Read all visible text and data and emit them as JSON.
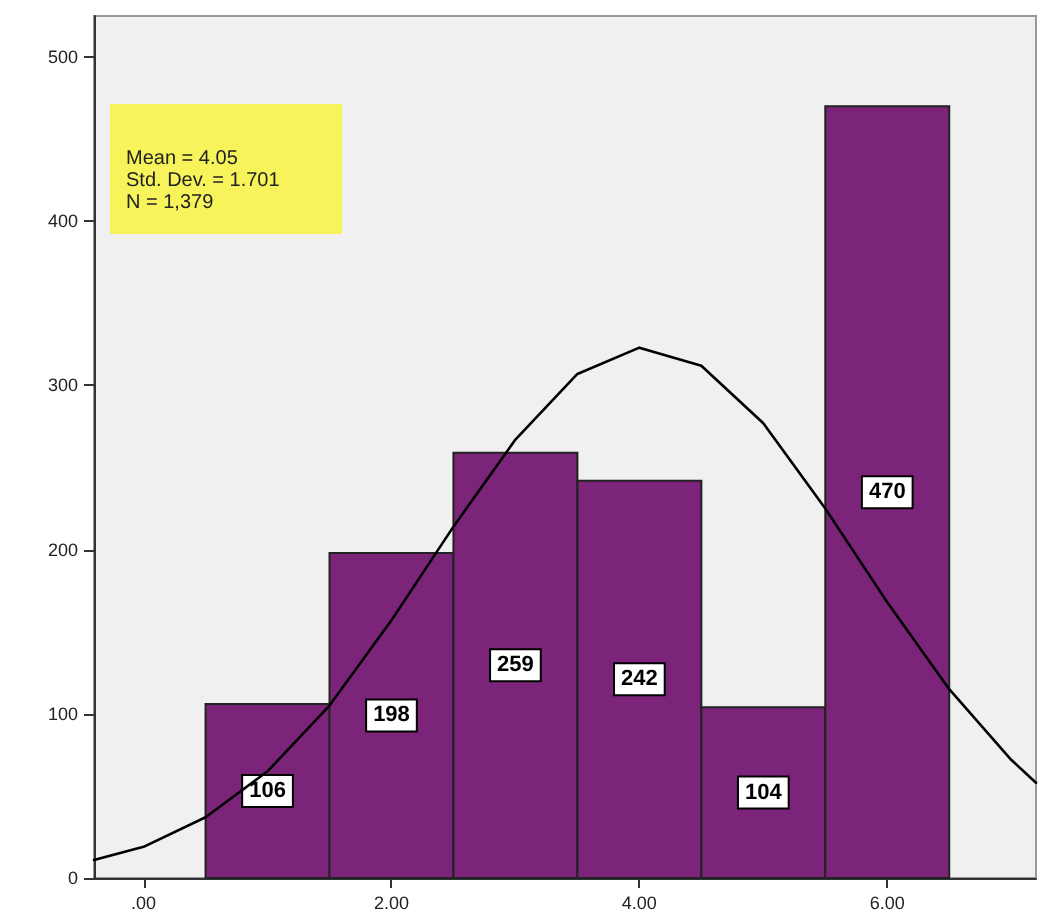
{
  "chart_data": {
    "type": "histogram",
    "bins": [
      0.5,
      1.5,
      2.5,
      3.5,
      4.5,
      5.5,
      6.5
    ],
    "series": [
      {
        "color": "#7b2479",
        "values": [
          106,
          198,
          259,
          242,
          104,
          470
        ],
        "value_labels": [
          "106",
          "198",
          "259",
          "242",
          "104",
          "470"
        ]
      },
      {
        "type": "line",
        "color": "#000000",
        "x": [
          -0.4,
          0,
          0.5,
          1,
          1.5,
          2,
          2.5,
          3,
          3.5,
          4,
          4.5,
          5,
          5.5,
          6,
          6.5,
          7,
          7.2
        ],
        "values": [
          11,
          19,
          37,
          65,
          105,
          157,
          214,
          267,
          307,
          323,
          312,
          277,
          225,
          168,
          115,
          72,
          58
        ]
      }
    ],
    "xlim": [
      -0.4,
      7.2
    ],
    "xticks": [
      {
        "value": 0,
        "label": ".00"
      },
      {
        "value": 2,
        "label": "2.00"
      },
      {
        "value": 4,
        "label": "4.00"
      },
      {
        "value": 6,
        "label": "6.00"
      }
    ],
    "ylim": [
      0,
      525
    ],
    "yticks": [
      0,
      100,
      200,
      300,
      400,
      500
    ],
    "grid": false,
    "marker": "none",
    "line_style": "solid",
    "annotations": [
      "Mean = 4.05",
      "Std. Dev. = 1.701",
      "N = 1,379"
    ]
  }
}
